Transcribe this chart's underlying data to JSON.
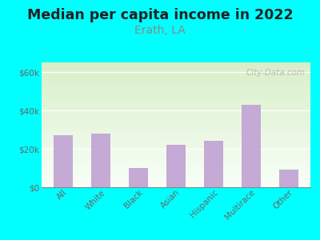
{
  "title": "Median per capita income in 2022",
  "subtitle": "Erath, LA",
  "categories": [
    "All",
    "White",
    "Black",
    "Asian",
    "Hispanic",
    "Multirace",
    "Other"
  ],
  "values": [
    27000,
    28000,
    10000,
    22000,
    24000,
    43000,
    9000
  ],
  "bar_color": "#c4aad4",
  "background_outer": "#00FFFF",
  "background_inner_top_color": "#d8eec8",
  "background_inner_bottom_color": "#f8fff8",
  "title_color": "#222222",
  "subtitle_color": "#888888",
  "tick_label_color": "#666666",
  "ytick_labels": [
    "$0",
    "$20k",
    "$40k",
    "$60k"
  ],
  "ytick_values": [
    0,
    20000,
    40000,
    60000
  ],
  "ylim": [
    0,
    65000
  ],
  "watermark": "City-Data.com",
  "title_fontsize": 12.5,
  "subtitle_fontsize": 10
}
